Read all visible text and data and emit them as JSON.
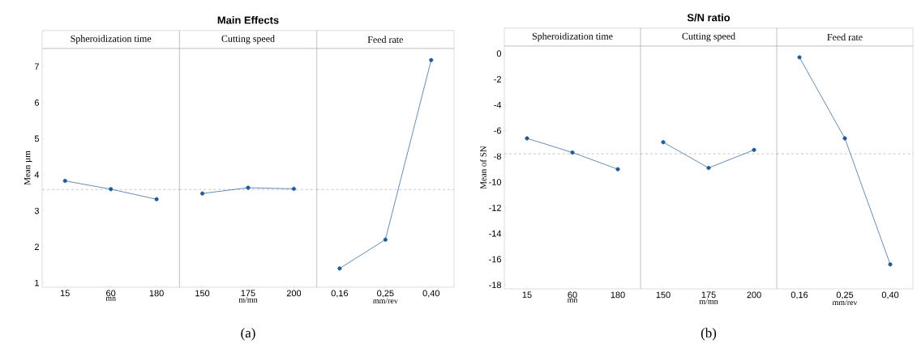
{
  "chart_data": [
    {
      "type": "line",
      "subtitle": "Spheroidization time",
      "categories": [
        "15",
        "60",
        "180"
      ],
      "xlabel": "mn",
      "ylabel": "Mean µm",
      "values": [
        3.83,
        3.6,
        3.32
      ],
      "color": "#1f5b99",
      "marker": "circle",
      "line_style": "solid",
      "ylim": [
        0.88,
        7.5
      ],
      "yticks": [
        1,
        2,
        3,
        4,
        5,
        6,
        7
      ],
      "ref_lines": [
        {
          "axis": "y",
          "value": 3.59,
          "color": "#a0a0a0",
          "line_style": "dashed"
        }
      ]
    },
    {
      "type": "line",
      "title": "Main Effects",
      "annotations": [
        "(a)"
      ],
      "subtitle": "Cutting speed",
      "categories": [
        "150",
        "175",
        "200"
      ],
      "xlabel": "m/mn",
      "values": [
        3.48,
        3.64,
        3.61
      ],
      "color": "#1f5b99",
      "marker": "circle",
      "line_style": "solid",
      "ylim": [
        0.88,
        7.5
      ],
      "tick_labels": "x",
      "ref_lines": [
        {
          "axis": "y",
          "value": 3.59,
          "color": "#a0a0a0",
          "line_style": "dashed"
        }
      ]
    },
    {
      "type": "line",
      "subtitle": "Feed rate",
      "categories": [
        "0,16",
        "0,25",
        "0,40"
      ],
      "xlabel": "mm/rev",
      "values": [
        1.4,
        2.2,
        7.18
      ],
      "color": "#1f5b99",
      "marker": "circle",
      "line_style": "solid",
      "ylim": [
        0.88,
        7.5
      ],
      "tick_labels": "x",
      "ref_lines": [
        {
          "axis": "y",
          "value": 3.59,
          "color": "#a0a0a0",
          "line_style": "dashed"
        }
      ]
    },
    {
      "type": "line",
      "subtitle": "Spheroidization time",
      "categories": [
        "15",
        "60",
        "180"
      ],
      "xlabel": "mn",
      "ylabel": "Mean of SN",
      "values": [
        -6.6,
        -7.7,
        -9.0
      ],
      "color": "#1f5b99",
      "marker": "circle",
      "line_style": "solid",
      "ylim": [
        -18.3,
        0.57
      ],
      "yticks": [
        0,
        -2,
        -4,
        -6,
        -8,
        -10,
        -12,
        -14,
        -16,
        -18
      ],
      "ref_lines": [
        {
          "axis": "y",
          "value": -7.8,
          "color": "#a0a0a0",
          "line_style": "dashed"
        }
      ]
    },
    {
      "type": "line",
      "title": "S/N ratio",
      "annotations": [
        "(b)"
      ],
      "subtitle": "Cutting speed",
      "categories": [
        "150",
        "175",
        "200"
      ],
      "xlabel": "m/mn",
      "values": [
        -6.9,
        -8.9,
        -7.5
      ],
      "color": "#1f5b99",
      "marker": "circle",
      "line_style": "solid",
      "ylim": [
        -18.3,
        0.57
      ],
      "tick_labels": "x",
      "ref_lines": [
        {
          "axis": "y",
          "value": -7.8,
          "color": "#a0a0a0",
          "line_style": "dashed"
        }
      ]
    },
    {
      "type": "line",
      "subtitle": "Feed rate",
      "categories": [
        "0,16",
        "0,25",
        "0,40"
      ],
      "xlabel": "mm/rev",
      "values": [
        -0.3,
        -6.6,
        -16.4
      ],
      "color": "#1f5b99",
      "marker": "circle",
      "line_style": "solid",
      "ylim": [
        -18.3,
        0.57
      ],
      "tick_labels": "x",
      "ref_lines": [
        {
          "axis": "y",
          "value": -7.8,
          "color": "#a0a0a0",
          "line_style": "dashed"
        }
      ]
    }
  ]
}
